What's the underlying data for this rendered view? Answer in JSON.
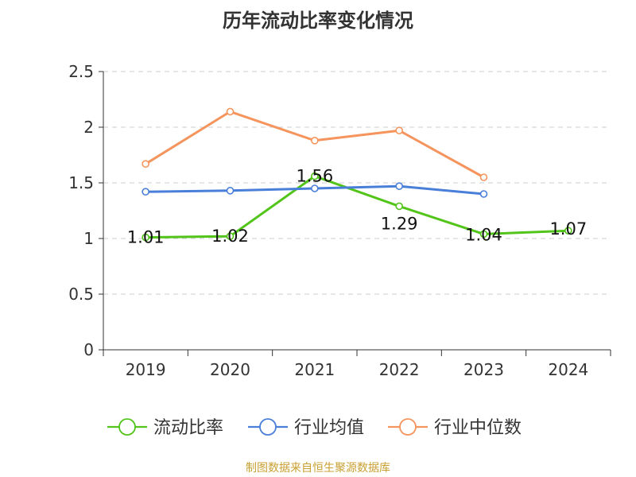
{
  "chart_data": {
    "type": "line",
    "title": "历年流动比率变化情况",
    "categories": [
      "2019",
      "2020",
      "2021",
      "2022",
      "2023",
      "2024"
    ],
    "ylim": [
      0,
      2.5
    ],
    "yticks": [
      "0",
      "0.5",
      "1",
      "1.5",
      "2",
      "2.5"
    ],
    "grid": true,
    "legend_position": "bottom",
    "series": [
      {
        "name": "流动比率",
        "color": "#52c41a",
        "values": [
          1.01,
          1.02,
          1.56,
          1.29,
          1.04,
          1.07
        ],
        "labels": [
          "1.01",
          "1.02",
          "1.56",
          "1.29",
          "1.04",
          "1.07"
        ]
      },
      {
        "name": "行业均值",
        "color": "#4a7fd9",
        "values": [
          1.42,
          1.43,
          1.45,
          1.47,
          1.4,
          null
        ]
      },
      {
        "name": "行业中位数",
        "color": "#f5945c",
        "values": [
          1.67,
          2.14,
          1.88,
          1.97,
          1.55,
          null
        ]
      }
    ]
  },
  "source": "制图数据来自恒生聚源数据库"
}
